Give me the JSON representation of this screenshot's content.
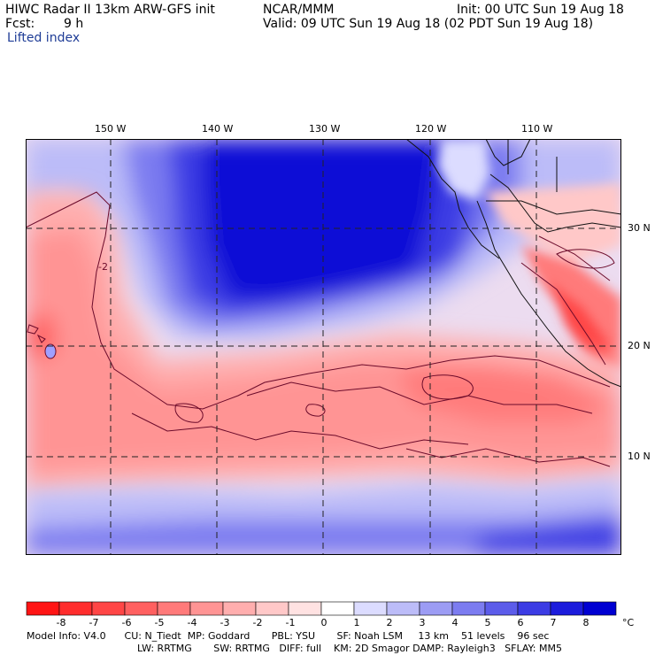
{
  "header": {
    "title": "HIWC Radar II 13km ARW-GFS init",
    "org": "NCAR/MMM",
    "init": "Init: 00 UTC Sun 19 Aug 18",
    "fcst_label": "Fcst:",
    "fcst_value": "9 h",
    "valid": "Valid: 09 UTC Sun 19 Aug 18 (02 PDT Sun 19 Aug 18)",
    "field": "Lifted index"
  },
  "map": {
    "longitudes": [
      "150 W",
      "140 W",
      "130 W",
      "120 W",
      "110 W"
    ],
    "latitudes": [
      "30 N",
      "20 N",
      "10 N"
    ],
    "contour_labels": [
      "-2"
    ]
  },
  "legend": {
    "ticks": [
      "-8",
      "-7",
      "-6",
      "-5",
      "-4",
      "-3",
      "-2",
      "-1",
      "0",
      "1",
      "2",
      "3",
      "4",
      "5",
      "6",
      "7",
      "8"
    ],
    "unit": "°C",
    "colors": [
      "#ff1414",
      "#ff2d2d",
      "#ff4646",
      "#ff6060",
      "#ff7a7a",
      "#ff9494",
      "#ffaeae",
      "#ffc8c8",
      "#ffe2e2",
      "#ffffff",
      "#dcdcff",
      "#bcbcf8",
      "#9c9cf4",
      "#7c7cf0",
      "#5c5cea",
      "#3c3ce4",
      "#1c1cdc",
      "#0000d2"
    ]
  },
  "model_info": {
    "line1": "Model Info: V4.0      CU: N_Tiedt  MP: Goddard       PBL: YSU       SF: Noah LSM     13 km    51 levels    96 sec",
    "line2": "LW: RRTMG       SW: RRTMG   DIFF: full    KM: 2D Smagor DAMP: Rayleigh3   SFLAY: MM5"
  }
}
